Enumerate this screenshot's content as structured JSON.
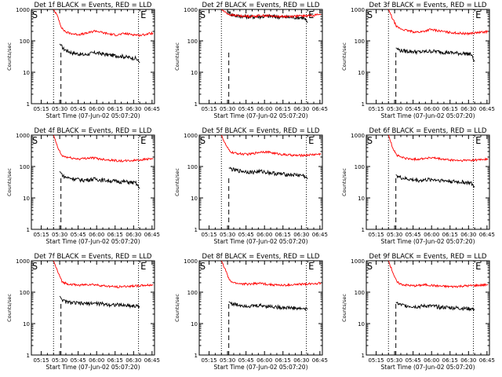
{
  "colors": {
    "events": "#000000",
    "lld": "#ff0000",
    "axis": "#000000",
    "background": "#ffffff"
  },
  "chart_data": [
    {
      "type": "line",
      "title": "Det 1f  BLACK = Events, RED = LLD",
      "xlabel": "Start Time (07-Jun-02 05:07:20)",
      "ylabel": "Counts/sec",
      "ylim": [
        1,
        1000
      ],
      "yscale": "log",
      "yticks": [
        "1",
        "10",
        "100",
        "1000"
      ],
      "xticks": [
        "05:15",
        "05:30",
        "05:45",
        "06:00",
        "06:15",
        "06:30",
        "06:45"
      ],
      "markers": [
        {
          "label": "S",
          "x": "05:07"
        },
        {
          "label": "E",
          "x": "06:35"
        }
      ],
      "dotted_lines": [
        "05:25",
        "06:34"
      ],
      "dashed_line": "05:31",
      "series": [
        {
          "name": "Events",
          "color": "black",
          "x_start": "05:30",
          "x_end": "06:35",
          "values": [
            80,
            55,
            48,
            42,
            40,
            38,
            36,
            38,
            40,
            42,
            40,
            38,
            36,
            35,
            34,
            33,
            32,
            30,
            29,
            28,
            20
          ]
        },
        {
          "name": "LLD",
          "color": "red",
          "x_start": "05:25",
          "x_end": "06:46",
          "values": [
            1000,
            600,
            250,
            190,
            175,
            165,
            160,
            165,
            175,
            190,
            210,
            195,
            180,
            170,
            160,
            155,
            160,
            170,
            165,
            160,
            155,
            150,
            160,
            170,
            175
          ]
        }
      ]
    },
    {
      "type": "line",
      "title": "Det 2f  BLACK = Events, RED = LLD",
      "xlabel": "Start Time (07-Jun-02 05:07:20)",
      "ylabel": "Counts/sec",
      "ylim": [
        1,
        1000
      ],
      "yscale": "log",
      "yticks": [
        "1",
        "10",
        "100",
        "1000"
      ],
      "xticks": [
        "05:15",
        "05:30",
        "05:45",
        "06:00",
        "06:15",
        "06:30",
        "06:45"
      ],
      "markers": [
        {
          "label": "S",
          "x": "05:07"
        },
        {
          "label": "E",
          "x": "06:35"
        }
      ],
      "dotted_lines": [
        "05:25",
        "06:34"
      ],
      "dashed_line": "05:31",
      "series": [
        {
          "name": "Events",
          "color": "black",
          "x_start": "05:30",
          "x_end": "06:35",
          "values": [
            900,
            700,
            640,
            610,
            600,
            590,
            585,
            580,
            590,
            600,
            610,
            600,
            590,
            580,
            570,
            565,
            560,
            560,
            555,
            550,
            380
          ]
        },
        {
          "name": "LLD",
          "color": "red",
          "x_start": "05:25",
          "x_end": "06:46",
          "values": [
            1000,
            800,
            680,
            650,
            630,
            620,
            610,
            605,
            615,
            630,
            640,
            630,
            620,
            610,
            600,
            595,
            600,
            610,
            615,
            620,
            625,
            630,
            650,
            680,
            700
          ]
        }
      ]
    },
    {
      "type": "line",
      "title": "Det 3f  BLACK = Events, RED = LLD",
      "xlabel": "Start Time (07-Jun-02 05:07:20)",
      "ylabel": "Counts/sec",
      "ylim": [
        1,
        1000
      ],
      "yscale": "log",
      "yticks": [
        "1",
        "10",
        "100",
        "1000"
      ],
      "xticks": [
        "05:15",
        "05:30",
        "05:45",
        "06:00",
        "06:15",
        "06:30",
        "06:45"
      ],
      "markers": [
        {
          "label": "S",
          "x": "05:07"
        },
        {
          "label": "E",
          "x": "06:35"
        }
      ],
      "dotted_lines": [
        "05:25",
        "06:34"
      ],
      "dashed_line": "05:31",
      "series": [
        {
          "name": "Events",
          "color": "black",
          "x_start": "05:31",
          "x_end": "06:35",
          "values": [
            60,
            50,
            48,
            47,
            46,
            45,
            44,
            45,
            46,
            47,
            46,
            45,
            44,
            43,
            42,
            41,
            40,
            40,
            39,
            38,
            22
          ]
        },
        {
          "name": "LLD",
          "color": "red",
          "x_start": "05:25",
          "x_end": "06:46",
          "values": [
            1000,
            500,
            280,
            240,
            220,
            205,
            195,
            190,
            195,
            210,
            230,
            220,
            210,
            200,
            190,
            185,
            180,
            175,
            172,
            170,
            175,
            180,
            185,
            190,
            200
          ]
        }
      ]
    },
    {
      "type": "line",
      "title": "Det 4f  BLACK = Events, RED = LLD",
      "xlabel": "Start Time (07-Jun-02 05:07:20)",
      "ylabel": "Counts/sec",
      "ylim": [
        1,
        1000
      ],
      "yscale": "log",
      "yticks": [
        "1",
        "10",
        "100",
        "1000"
      ],
      "xticks": [
        "05:15",
        "05:30",
        "05:45",
        "06:00",
        "06:15",
        "06:30",
        "06:45"
      ],
      "markers": [
        {
          "label": "S",
          "x": "05:07"
        },
        {
          "label": "E",
          "x": "06:35"
        }
      ],
      "dotted_lines": [
        "05:25",
        "06:34"
      ],
      "dashed_line": "05:31",
      "series": [
        {
          "name": "Events",
          "color": "black",
          "x_start": "05:30",
          "x_end": "06:35",
          "values": [
            70,
            48,
            44,
            42,
            40,
            38,
            37,
            38,
            39,
            40,
            38,
            37,
            36,
            35,
            34,
            33,
            33,
            32,
            31,
            30,
            20
          ]
        },
        {
          "name": "LLD",
          "color": "red",
          "x_start": "05:25",
          "x_end": "06:46",
          "values": [
            1000,
            400,
            220,
            200,
            190,
            180,
            175,
            178,
            185,
            190,
            185,
            175,
            170,
            165,
            160,
            155,
            150,
            150,
            152,
            155,
            160,
            165,
            170,
            175,
            180
          ]
        }
      ]
    },
    {
      "type": "line",
      "title": "Det 5f  BLACK = Events, RED = LLD",
      "xlabel": "Start Time (07-Jun-02 05:07:20)",
      "ylabel": "Counts/sec",
      "ylim": [
        1,
        1000
      ],
      "yscale": "log",
      "yticks": [
        "1",
        "10",
        "100",
        "1000"
      ],
      "xticks": [
        "05:15",
        "05:30",
        "05:45",
        "06:00",
        "06:15",
        "06:30",
        "06:45"
      ],
      "markers": [
        {
          "label": "S",
          "x": "05:07"
        },
        {
          "label": "E",
          "x": "06:35"
        }
      ],
      "dotted_lines": [
        "05:25",
        "06:34"
      ],
      "dashed_line": "05:31",
      "series": [
        {
          "name": "Events",
          "color": "black",
          "x_start": "05:31",
          "x_end": "06:35",
          "values": [
            90,
            80,
            75,
            72,
            70,
            68,
            66,
            68,
            70,
            68,
            65,
            62,
            60,
            58,
            57,
            56,
            55,
            54,
            53,
            52,
            40
          ]
        },
        {
          "name": "LLD",
          "color": "red",
          "x_start": "05:25",
          "x_end": "06:46",
          "values": [
            1000,
            500,
            300,
            270,
            260,
            250,
            245,
            250,
            265,
            285,
            300,
            290,
            275,
            260,
            250,
            240,
            235,
            230,
            225,
            225,
            230,
            235,
            240,
            245,
            250
          ]
        }
      ]
    },
    {
      "type": "line",
      "title": "Det 6f  BLACK = Events, RED = LLD",
      "xlabel": "Start Time (07-Jun-02 05:07:20)",
      "ylabel": "Counts/sec",
      "ylim": [
        1,
        1000
      ],
      "yscale": "log",
      "yticks": [
        "1",
        "10",
        "100",
        "1000"
      ],
      "xticks": [
        "05:15",
        "05:30",
        "05:45",
        "06:00",
        "06:15",
        "06:30",
        "06:45"
      ],
      "markers": [
        {
          "label": "S",
          "x": "05:07"
        },
        {
          "label": "E",
          "x": "06:35"
        }
      ],
      "dotted_lines": [
        "05:25",
        "06:34"
      ],
      "dashed_line": "05:31",
      "series": [
        {
          "name": "Events",
          "color": "black",
          "x_start": "05:31",
          "x_end": "06:35",
          "values": [
            55,
            45,
            42,
            40,
            38,
            37,
            36,
            37,
            38,
            39,
            38,
            37,
            36,
            35,
            34,
            33,
            32,
            32,
            31,
            30,
            22
          ]
        },
        {
          "name": "LLD",
          "color": "red",
          "x_start": "05:25",
          "x_end": "06:46",
          "values": [
            1000,
            400,
            230,
            200,
            185,
            175,
            170,
            172,
            178,
            185,
            190,
            185,
            178,
            170,
            165,
            160,
            158,
            155,
            155,
            158,
            160,
            162,
            165,
            170,
            175
          ]
        }
      ]
    },
    {
      "type": "line",
      "title": "Det 7f  BLACK = Events, RED = LLD",
      "xlabel": "Start Time (07-Jun-02 05:07:20)",
      "ylabel": "Counts/sec",
      "ylim": [
        1,
        1000
      ],
      "yscale": "log",
      "yticks": [
        "1",
        "10",
        "100",
        "1000"
      ],
      "xticks": [
        "05:15",
        "05:30",
        "05:45",
        "06:00",
        "06:15",
        "06:30",
        "06:45"
      ],
      "markers": [
        {
          "label": "S",
          "x": "05:07"
        },
        {
          "label": "E",
          "x": "06:35"
        }
      ],
      "dotted_lines": [
        "05:25",
        "06:34"
      ],
      "dashed_line": "05:31",
      "series": [
        {
          "name": "Events",
          "color": "black",
          "x_start": "05:30",
          "x_end": "06:35",
          "values": [
            75,
            52,
            48,
            46,
            45,
            44,
            43,
            44,
            45,
            44,
            43,
            42,
            41,
            40,
            40,
            39,
            38,
            38,
            37,
            36,
            35
          ]
        },
        {
          "name": "LLD",
          "color": "red",
          "x_start": "05:25",
          "x_end": "06:46",
          "values": [
            1000,
            450,
            220,
            190,
            180,
            172,
            168,
            170,
            175,
            178,
            172,
            165,
            160,
            155,
            150,
            148,
            150,
            152,
            155,
            158,
            160,
            162,
            165,
            168,
            170
          ]
        }
      ]
    },
    {
      "type": "line",
      "title": "Det 8f  BLACK = Events, RED = LLD",
      "xlabel": "Start Time (07-Jun-02 05:07:20)",
      "ylabel": "Counts/sec",
      "ylim": [
        1,
        1000
      ],
      "yscale": "log",
      "yticks": [
        "1",
        "10",
        "100",
        "1000"
      ],
      "xticks": [
        "05:15",
        "05:30",
        "05:45",
        "06:00",
        "06:15",
        "06:30",
        "06:45"
      ],
      "markers": [
        {
          "label": "S",
          "x": "05:07"
        },
        {
          "label": "E",
          "x": "06:35"
        }
      ],
      "dotted_lines": [
        "05:25",
        "06:34"
      ],
      "dashed_line": "05:31",
      "series": [
        {
          "name": "Events",
          "color": "black",
          "x_start": "05:31",
          "x_end": "06:35",
          "values": [
            50,
            42,
            40,
            39,
            38,
            37,
            36,
            37,
            38,
            37,
            36,
            35,
            34,
            33,
            33,
            32,
            32,
            31,
            30,
            30,
            29
          ]
        },
        {
          "name": "LLD",
          "color": "red",
          "x_start": "05:25",
          "x_end": "06:46",
          "values": [
            1000,
            500,
            230,
            200,
            190,
            185,
            180,
            182,
            188,
            192,
            188,
            180,
            175,
            170,
            168,
            165,
            168,
            172,
            175,
            178,
            182,
            185,
            188,
            192,
            195
          ]
        }
      ]
    },
    {
      "type": "line",
      "title": "Det 9f  BLACK = Events, RED = LLD",
      "xlabel": "Start Time (07-Jun-02 05:07:20)",
      "ylabel": "Counts/sec",
      "ylim": [
        1,
        1000
      ],
      "yscale": "log",
      "yticks": [
        "1",
        "10",
        "100",
        "1000"
      ],
      "xticks": [
        "05:15",
        "05:30",
        "05:45",
        "06:00",
        "06:15",
        "06:30",
        "06:45"
      ],
      "markers": [
        {
          "label": "S",
          "x": "05:07"
        },
        {
          "label": "E",
          "x": "06:35"
        }
      ],
      "dotted_lines": [
        "05:25",
        "06:34"
      ],
      "dashed_line": "05:31",
      "series": [
        {
          "name": "Events",
          "color": "black",
          "x_start": "05:31",
          "x_end": "06:35",
          "values": [
            48,
            40,
            38,
            37,
            36,
            35,
            35,
            36,
            37,
            36,
            35,
            34,
            33,
            33,
            32,
            32,
            31,
            31,
            30,
            30,
            28
          ]
        },
        {
          "name": "LLD",
          "color": "red",
          "x_start": "05:25",
          "x_end": "06:46",
          "values": [
            1000,
            450,
            210,
            180,
            170,
            165,
            160,
            162,
            168,
            172,
            168,
            162,
            158,
            155,
            152,
            150,
            152,
            155,
            158,
            160,
            162,
            165,
            168,
            170,
            172
          ]
        }
      ]
    }
  ]
}
